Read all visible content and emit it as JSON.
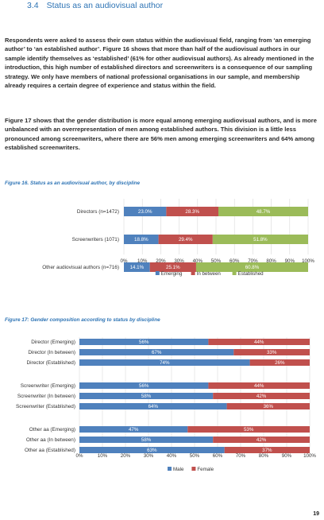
{
  "section": {
    "number": "3.4",
    "title": "Status as an audiovisual author"
  },
  "paragraphs": [
    "Respondents were asked to assess their own status within the audiovisual field, ranging from ‘an emerging author’ to ‘an established author’. Figure 16 shows that more than half of the audiovisual authors in our sample identify themselves as ‘established’ (61% for other audiovisual authors). As already mentioned in the introduction, this high number of established directors and screenwriters is a consequence of our sampling strategy. We only have members of national professional organisations in our sample, and membership already requires a certain degree of experience and status within the field.",
    "Figure 17 shows that the gender distribution is more equal among emerging audiovisual authors, and is more unbalanced with an overrepresentation of men among established authors. This division is a little less pronounced among screenwriters, where there are 56% men among emerging screenwriters and 64% among established screenwriters."
  ],
  "figure16_caption": "Figure 16. Status as an audiovisual author, by discipline",
  "figure17_caption": "Figure 17: Gender composition according to status by discipline",
  "page_number": "19",
  "colors": {
    "blue": "#4f81bd",
    "red": "#c0504d",
    "green": "#9bbb59",
    "heading": "#2e74b5",
    "grid": "#d9d9d9"
  },
  "chart_data": [
    {
      "type": "bar",
      "orientation": "horizontal-stacked",
      "categories": [
        "Directors (n=1472)",
        "Screenwriters (1071)",
        "Other audiovisual authors (n=716)"
      ],
      "series": [
        {
          "name": "Emerging",
          "color": "#4f81bd",
          "values": [
            23.0,
            18.8,
            14.1
          ],
          "labels": [
            "23.0%",
            "18.8%",
            "14.1%"
          ]
        },
        {
          "name": "In between",
          "color": "#c0504d",
          "values": [
            28.3,
            29.4,
            25.1
          ],
          "labels": [
            "28.3%",
            "29.4%",
            "25.1%"
          ]
        },
        {
          "name": "Established",
          "color": "#9bbb59",
          "values": [
            48.7,
            51.8,
            60.8
          ],
          "labels": [
            "48.7%",
            "51.8%",
            "60.8%"
          ]
        }
      ],
      "xticks": [
        "0%",
        "10%",
        "20%",
        "30%",
        "40%",
        "50%",
        "60%",
        "70%",
        "80%",
        "90%",
        "100%"
      ],
      "xlim": [
        0,
        100
      ],
      "grid": true,
      "legend": "bottom"
    },
    {
      "type": "bar",
      "orientation": "horizontal-stacked",
      "groups": [
        [
          "Director (Emerging)",
          "Director (In between)",
          "Director (Established)"
        ],
        [
          "Screenwriter (Emerging)",
          "Screenwriter (In between)",
          "Screenwriter (Established)"
        ],
        [
          "Other aa (Emerging)",
          "Other aa (In between)",
          "Other aa (Established)"
        ]
      ],
      "series": [
        {
          "name": "Male",
          "color": "#4f81bd",
          "values": [
            56,
            67,
            74,
            56,
            58,
            64,
            47,
            58,
            63
          ],
          "labels": [
            "56%",
            "67%",
            "74%",
            "56%",
            "58%",
            "64%",
            "47%",
            "58%",
            "63%"
          ]
        },
        {
          "name": "Female",
          "color": "#c0504d",
          "values": [
            44,
            33,
            26,
            44,
            42,
            36,
            53,
            42,
            37
          ],
          "labels": [
            "44%",
            "33%",
            "26%",
            "44%",
            "42%",
            "36%",
            "53%",
            "42%",
            "37%"
          ]
        }
      ],
      "xticks": [
        "0%",
        "10%",
        "20%",
        "30%",
        "40%",
        "50%",
        "60%",
        "70%",
        "80%",
        "90%",
        "100%"
      ],
      "xlim": [
        0,
        100
      ],
      "grid": true,
      "legend": "bottom"
    }
  ]
}
